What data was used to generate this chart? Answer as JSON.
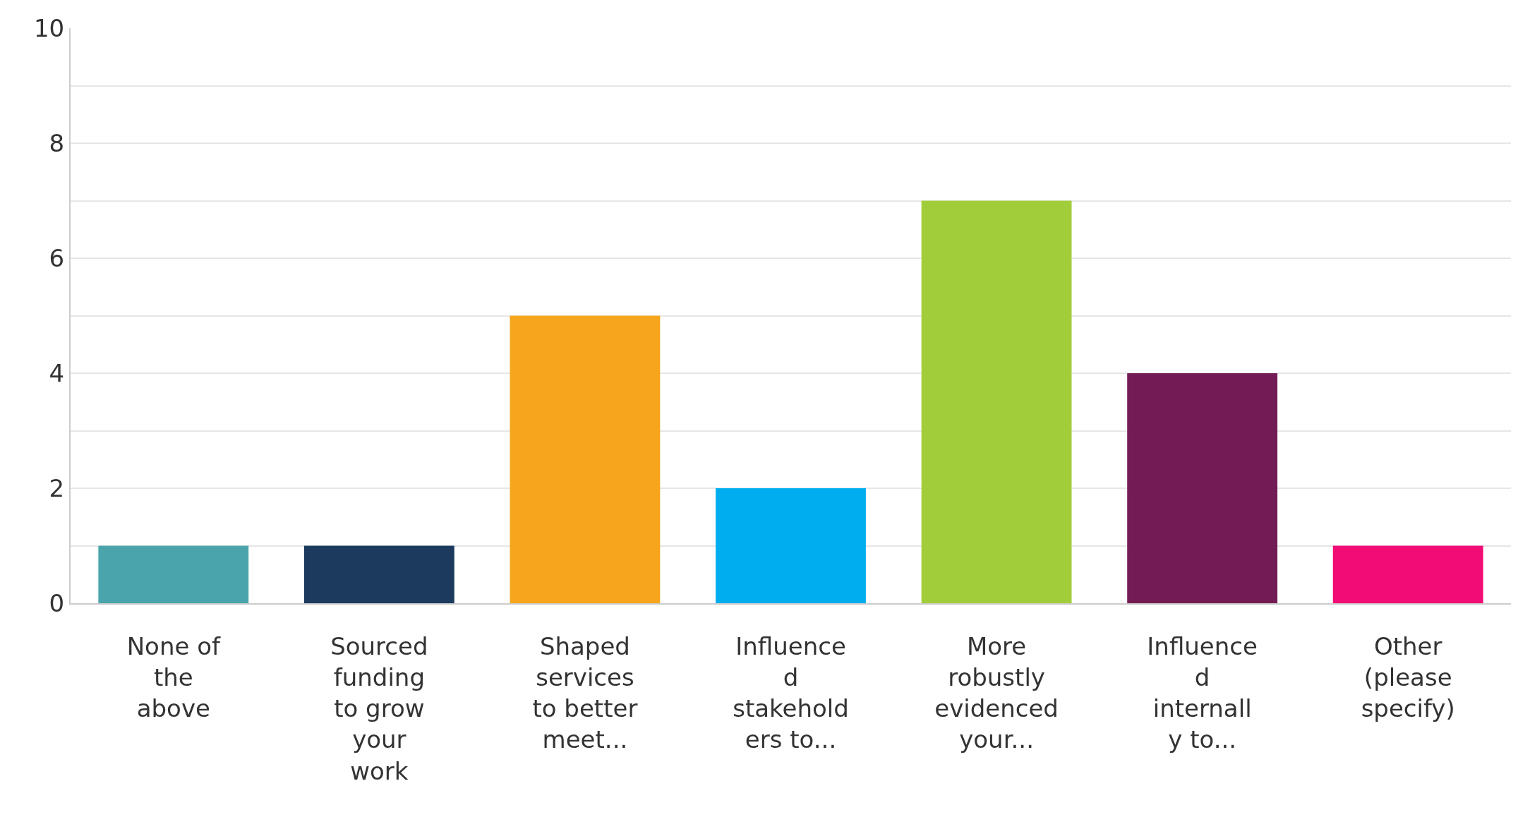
{
  "chart_data": {
    "type": "bar",
    "categories": [
      "None of\nthe\nabove",
      "Sourced\nfunding\nto grow\nyour\nwork",
      "Shaped\nservices\nto better\nmeet...",
      "Influence\nd\nstakehold\ners to...",
      "More\nrobustly\nevidenced\nyour...",
      "Influence\nd\ninternall\ny to...",
      "Other\n(please\nspecify)"
    ],
    "values": [
      1,
      1,
      5,
      2,
      7,
      4,
      1
    ],
    "colors": [
      "#4aa4ab",
      "#1b3a5e",
      "#f7a51d",
      "#00aeef",
      "#a2cd3a",
      "#731c53",
      "#f20c75"
    ],
    "ylim": [
      0,
      10
    ],
    "yticks": [
      0,
      {
        "value": 1,
        "label": null
      },
      2,
      {
        "value": 3,
        "label": null
      },
      4,
      {
        "value": 5,
        "label": null
      },
      6,
      {
        "value": 7,
        "label": null
      },
      8,
      {
        "value": 9,
        "label": null
      },
      10
    ],
    "grid": "y"
  }
}
